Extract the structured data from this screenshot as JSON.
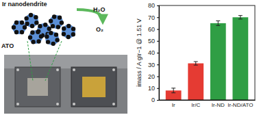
{
  "chart_data": {
    "type": "bar",
    "ylabel": "imass / A gIr−1 @ 1.51 V",
    "categories": [
      "Ir",
      "Ir/C",
      "Ir-ND",
      "Ir-ND/ATO"
    ],
    "values": [
      8,
      31,
      65,
      70
    ],
    "errors": [
      2,
      1.5,
      2,
      1.5
    ],
    "colors": [
      "#e53b33",
      "#e53b33",
      "#2f9e44",
      "#2f9e44"
    ],
    "ylim": [
      0,
      80
    ],
    "yticks": [
      0,
      10,
      20,
      30,
      40,
      50,
      60,
      70,
      80
    ],
    "grid": false,
    "annotations": [
      "Ir nanodendrite",
      "ATO",
      "H₂O",
      "O₂"
    ]
  }
}
